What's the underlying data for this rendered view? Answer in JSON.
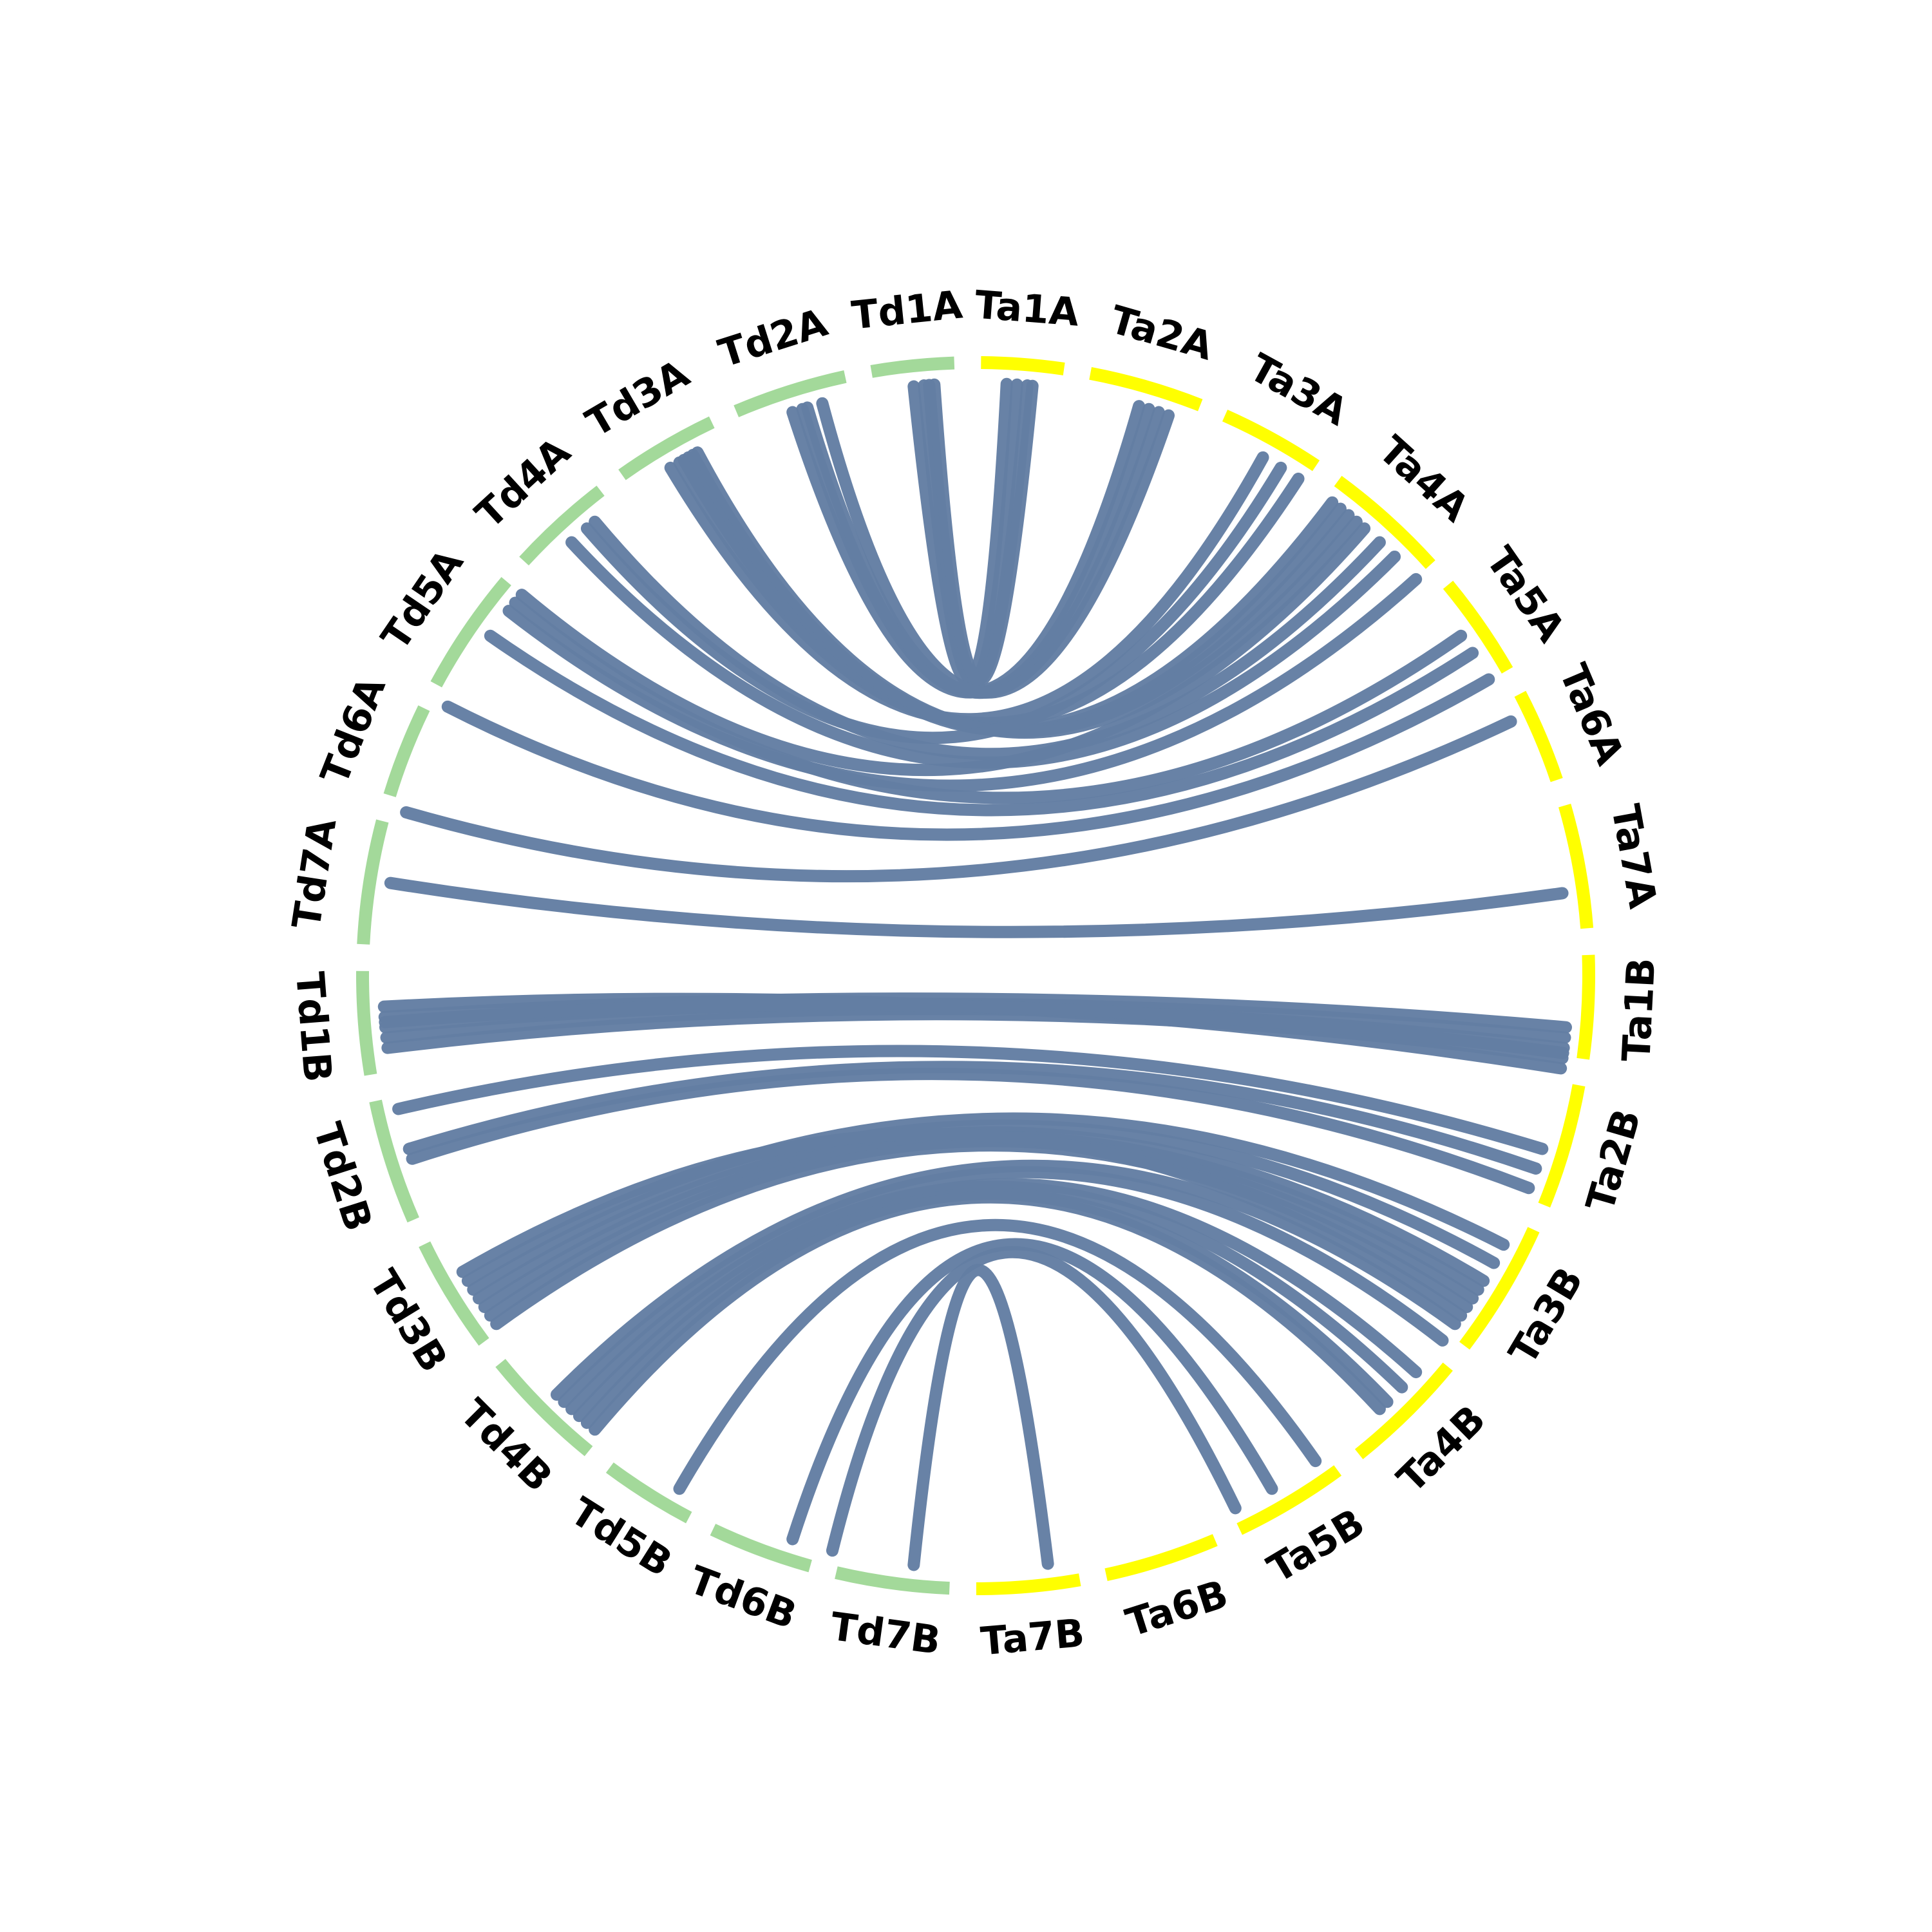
{
  "segments": [
    {
      "label": "Ta1A",
      "color": "#ffff00"
    },
    {
      "label": "Ta2A",
      "color": "#ffff00"
    },
    {
      "label": "Ta3A",
      "color": "#ffff00"
    },
    {
      "label": "Ta4A",
      "color": "#ffff00"
    },
    {
      "label": "Ta5A",
      "color": "#ffff00"
    },
    {
      "label": "Ta6A",
      "color": "#ffff00"
    },
    {
      "label": "Ta7A",
      "color": "#ffff00"
    },
    {
      "label": "Ta1B",
      "color": "#ffff00"
    },
    {
      "label": "Ta2B",
      "color": "#ffff00"
    },
    {
      "label": "Ta3B",
      "color": "#ffff00"
    },
    {
      "label": "Ta4B",
      "color": "#ffff00"
    },
    {
      "label": "Ta5B",
      "color": "#ffff00"
    },
    {
      "label": "Ta6B",
      "color": "#ffff00"
    },
    {
      "label": "Ta7B",
      "color": "#ffff00"
    },
    {
      "label": "Td7B",
      "color": "#a3d99a"
    },
    {
      "label": "Td6B",
      "color": "#a3d99a"
    },
    {
      "label": "Td5B",
      "color": "#a3d99a"
    },
    {
      "label": "Td4B",
      "color": "#a3d99a"
    },
    {
      "label": "Td3B",
      "color": "#a3d99a"
    },
    {
      "label": "Td2B",
      "color": "#a3d99a"
    },
    {
      "label": "Td1B",
      "color": "#a3d99a"
    },
    {
      "label": "Td7A",
      "color": "#a3d99a"
    },
    {
      "label": "Td6A",
      "color": "#a3d99a"
    },
    {
      "label": "Td5A",
      "color": "#a3d99a"
    },
    {
      "label": "Td4A",
      "color": "#a3d99a"
    },
    {
      "label": "Td3A",
      "color": "#a3d99a"
    },
    {
      "label": "Td2A",
      "color": "#a3d99a"
    },
    {
      "label": "Td1A",
      "color": "#a3d99a"
    }
  ]
}
